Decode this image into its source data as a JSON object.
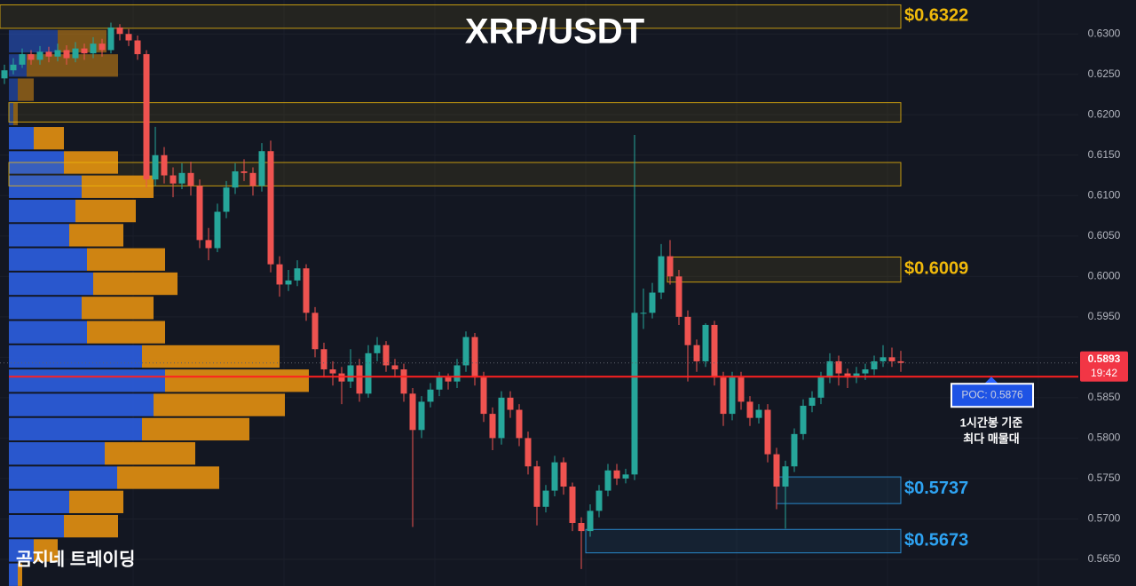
{
  "chart_data": {
    "type": "candlestick",
    "title": "XRP/USDT",
    "watermark": "곰지네 트레이딩",
    "ylim": [
      0.5617,
      0.6342
    ],
    "yticks": [
      {
        "value": 0.565,
        "label": "0.5650"
      },
      {
        "value": 0.57,
        "label": "0.5700"
      },
      {
        "value": 0.575,
        "label": "0.5750"
      },
      {
        "value": 0.58,
        "label": "0.5800"
      },
      {
        "value": 0.585,
        "label": "0.5850"
      },
      {
        "value": 0.59,
        "label": "0.5900"
      },
      {
        "value": 0.595,
        "label": "0.5950"
      },
      {
        "value": 0.6,
        "label": "0.6000"
      },
      {
        "value": 0.605,
        "label": "0.6050"
      },
      {
        "value": 0.61,
        "label": "0.6100"
      },
      {
        "value": 0.615,
        "label": "0.6150"
      },
      {
        "value": 0.62,
        "label": "0.6200"
      },
      {
        "value": 0.625,
        "label": "0.6250"
      },
      {
        "value": 0.63,
        "label": "0.6300"
      }
    ],
    "grid": true,
    "up_color": "#26a69a",
    "down_color": "#ef5350",
    "candles": [
      [
        0.6245,
        0.6262,
        0.6238,
        0.6255
      ],
      [
        0.6255,
        0.627,
        0.625,
        0.6262
      ],
      [
        0.6262,
        0.6282,
        0.6258,
        0.6275
      ],
      [
        0.6275,
        0.628,
        0.6262,
        0.6268
      ],
      [
        0.6268,
        0.6285,
        0.6262,
        0.6278
      ],
      [
        0.6278,
        0.6284,
        0.6265,
        0.6272
      ],
      [
        0.6272,
        0.6288,
        0.6266,
        0.628
      ],
      [
        0.628,
        0.6286,
        0.6262,
        0.627
      ],
      [
        0.627,
        0.629,
        0.6265,
        0.6282
      ],
      [
        0.6282,
        0.6288,
        0.6268,
        0.6276
      ],
      [
        0.6276,
        0.6296,
        0.627,
        0.6288
      ],
      [
        0.6288,
        0.6294,
        0.6272,
        0.628
      ],
      [
        0.628,
        0.6314,
        0.6276,
        0.6308
      ],
      [
        0.6308,
        0.6312,
        0.6292,
        0.63
      ],
      [
        0.63,
        0.6306,
        0.6285,
        0.6292
      ],
      [
        0.6292,
        0.6298,
        0.6268,
        0.6275
      ],
      [
        0.6275,
        0.628,
        0.611,
        0.612
      ],
      [
        0.612,
        0.6185,
        0.6112,
        0.615
      ],
      [
        0.615,
        0.616,
        0.6115,
        0.6125
      ],
      [
        0.6125,
        0.6135,
        0.6098,
        0.6115
      ],
      [
        0.6115,
        0.614,
        0.6108,
        0.6128
      ],
      [
        0.6128,
        0.6142,
        0.61,
        0.6112
      ],
      [
        0.6112,
        0.612,
        0.6035,
        0.6045
      ],
      [
        0.6045,
        0.606,
        0.602,
        0.6035
      ],
      [
        0.6035,
        0.609,
        0.603,
        0.608
      ],
      [
        0.608,
        0.6118,
        0.6072,
        0.611
      ],
      [
        0.611,
        0.614,
        0.6102,
        0.613
      ],
      [
        0.613,
        0.6145,
        0.6118,
        0.6128
      ],
      [
        0.6128,
        0.6135,
        0.61,
        0.6112
      ],
      [
        0.6112,
        0.6165,
        0.6105,
        0.6155
      ],
      [
        0.6155,
        0.6168,
        0.6005,
        0.6015
      ],
      [
        0.6015,
        0.6025,
        0.5975,
        0.599
      ],
      [
        0.599,
        0.6008,
        0.5982,
        0.5995
      ],
      [
        0.5995,
        0.602,
        0.5988,
        0.601
      ],
      [
        0.601,
        0.6015,
        0.5945,
        0.5955
      ],
      [
        0.5955,
        0.5962,
        0.59,
        0.591
      ],
      [
        0.591,
        0.5918,
        0.5875,
        0.5885
      ],
      [
        0.5885,
        0.5895,
        0.5865,
        0.588
      ],
      [
        0.588,
        0.5888,
        0.5842,
        0.587
      ],
      [
        0.587,
        0.591,
        0.5862,
        0.589
      ],
      [
        0.589,
        0.5898,
        0.5845,
        0.5855
      ],
      [
        0.5855,
        0.5915,
        0.585,
        0.5905
      ],
      [
        0.5905,
        0.5925,
        0.5895,
        0.5915
      ],
      [
        0.5915,
        0.592,
        0.5882,
        0.589
      ],
      [
        0.589,
        0.5898,
        0.5875,
        0.5885
      ],
      [
        0.5885,
        0.5892,
        0.5845,
        0.5855
      ],
      [
        0.5855,
        0.5862,
        0.569,
        0.581
      ],
      [
        0.581,
        0.5852,
        0.58,
        0.5845
      ],
      [
        0.5845,
        0.5868,
        0.5838,
        0.586
      ],
      [
        0.586,
        0.5882,
        0.5852,
        0.5875
      ],
      [
        0.5875,
        0.588,
        0.586,
        0.587
      ],
      [
        0.587,
        0.5898,
        0.5862,
        0.589
      ],
      [
        0.589,
        0.5932,
        0.5882,
        0.5925
      ],
      [
        0.5925,
        0.593,
        0.5865,
        0.5875
      ],
      [
        0.5875,
        0.5882,
        0.582,
        0.583
      ],
      [
        0.583,
        0.5838,
        0.5785,
        0.58
      ],
      [
        0.58,
        0.5858,
        0.5792,
        0.585
      ],
      [
        0.585,
        0.5858,
        0.5825,
        0.5835
      ],
      [
        0.5835,
        0.5842,
        0.579,
        0.58
      ],
      [
        0.58,
        0.5808,
        0.5755,
        0.5765
      ],
      [
        0.5765,
        0.5772,
        0.5692,
        0.5715
      ],
      [
        0.5715,
        0.5742,
        0.5708,
        0.5735
      ],
      [
        0.5735,
        0.5778,
        0.5728,
        0.577
      ],
      [
        0.577,
        0.5776,
        0.573,
        0.574
      ],
      [
        0.574,
        0.5745,
        0.5685,
        0.5695
      ],
      [
        0.5695,
        0.5702,
        0.5638,
        0.5685
      ],
      [
        0.5685,
        0.5718,
        0.5678,
        0.571
      ],
      [
        0.571,
        0.5742,
        0.5702,
        0.5735
      ],
      [
        0.5735,
        0.5768,
        0.5728,
        0.576
      ],
      [
        0.576,
        0.5768,
        0.5742,
        0.575
      ],
      [
        0.575,
        0.5762,
        0.5744,
        0.5755
      ],
      [
        0.5755,
        0.6175,
        0.5748,
        0.5955
      ],
      [
        0.5955,
        0.5985,
        0.5935,
        0.5955
      ],
      [
        0.5955,
        0.5992,
        0.5948,
        0.598
      ],
      [
        0.598,
        0.604,
        0.5972,
        0.6025
      ],
      [
        0.6025,
        0.6045,
        0.599,
        0.6
      ],
      [
        0.6,
        0.6008,
        0.594,
        0.595
      ],
      [
        0.595,
        0.5958,
        0.587,
        0.5915
      ],
      [
        0.5915,
        0.5922,
        0.5882,
        0.5895
      ],
      [
        0.5895,
        0.5942,
        0.5888,
        0.594
      ],
      [
        0.594,
        0.5945,
        0.5865,
        0.5875
      ],
      [
        0.5875,
        0.5882,
        0.5815,
        0.583
      ],
      [
        0.583,
        0.5882,
        0.5822,
        0.5875
      ],
      [
        0.5875,
        0.5882,
        0.5835,
        0.5845
      ],
      [
        0.5845,
        0.5852,
        0.5815,
        0.5825
      ],
      [
        0.5825,
        0.5842,
        0.5818,
        0.5835
      ],
      [
        0.5835,
        0.5842,
        0.577,
        0.578
      ],
      [
        0.578,
        0.5788,
        0.5712,
        0.574
      ],
      [
        0.574,
        0.5772,
        0.5688,
        0.5765
      ],
      [
        0.5765,
        0.5812,
        0.5758,
        0.5805
      ],
      [
        0.5805,
        0.5848,
        0.5798,
        0.584
      ],
      [
        0.584,
        0.5858,
        0.5832,
        0.585
      ],
      [
        0.585,
        0.5882,
        0.5842,
        0.5875
      ],
      [
        0.5875,
        0.5905,
        0.5868,
        0.5895
      ],
      [
        0.5895,
        0.5902,
        0.5865,
        0.588
      ],
      [
        0.588,
        0.5886,
        0.5862,
        0.5875
      ],
      [
        0.5875,
        0.5888,
        0.5868,
        0.588
      ],
      [
        0.588,
        0.5892,
        0.5872,
        0.5885
      ],
      [
        0.5885,
        0.5902,
        0.5878,
        0.5895
      ],
      [
        0.5895,
        0.5915,
        0.5888,
        0.59
      ],
      [
        0.59,
        0.5912,
        0.5888,
        0.5895
      ],
      [
        0.5895,
        0.5908,
        0.5882,
        0.5893
      ]
    ],
    "volume_profile": {
      "bins": [
        0.6306,
        0.6276,
        0.6246,
        0.6216,
        0.6186,
        0.6156,
        0.6126,
        0.6096,
        0.6066,
        0.6036,
        0.6006,
        0.5976,
        0.5946,
        0.5916,
        0.5886,
        0.5856,
        0.5826,
        0.5796,
        0.5766,
        0.5736,
        0.5706,
        0.5676,
        0.5646,
        0.5616
      ],
      "buy": [
        55,
        20,
        10,
        5,
        28,
        62,
        82,
        75,
        68,
        88,
        95,
        82,
        88,
        150,
        176,
        163,
        150,
        108,
        122,
        68,
        62,
        28,
        10
      ],
      "sell": [
        55,
        103,
        18,
        5,
        34,
        61,
        81,
        68,
        61,
        88,
        95,
        81,
        88,
        155,
        162,
        148,
        121,
        102,
        115,
        61,
        61,
        27,
        5
      ],
      "buy_color": "#2a5bd7",
      "sell_color": "#d98a12"
    },
    "zones": [
      {
        "low": 0.6307,
        "high": 0.6336,
        "color": "#f0b90b",
        "value": 0.6322,
        "value_label": "$0.6322"
      },
      {
        "low": 0.6191,
        "high": 0.6215,
        "color": "#f0b90b"
      },
      {
        "low": 0.6112,
        "high": 0.6141,
        "color": "#f0b90b"
      },
      {
        "low": 0.5993,
        "high": 0.6024,
        "color": "#f0b90b",
        "value": 0.6009,
        "value_label": "$0.6009"
      },
      {
        "low": 0.5719,
        "high": 0.5752,
        "color": "#2ea3f2",
        "value": 0.5737,
        "value_label": "$0.5737"
      },
      {
        "low": 0.5658,
        "high": 0.5687,
        "color": "#2ea3f2",
        "value": 0.5673,
        "value_label": "$0.5673"
      }
    ],
    "poc": {
      "value": 0.5876,
      "label": "POC: 0.5876",
      "color": "#ff2020",
      "note": [
        "1시간봉 기준",
        "최다 매물대"
      ]
    },
    "last_price": {
      "value": 0.5893,
      "time": "19:42",
      "color": "#f23645"
    }
  }
}
